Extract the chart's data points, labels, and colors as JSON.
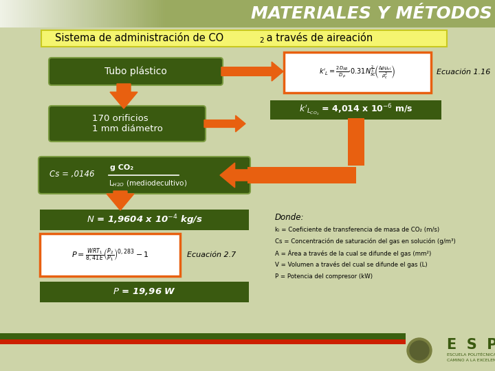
{
  "title": "MATERIALES Y MÉTODOS",
  "bg_color": "#cdd4a8",
  "title_bg_left": "#e8e8d8",
  "title_bg_right": "#8a9e5a",
  "orange": "#e86010",
  "dark_green": "#3a5a10",
  "light_green_border": "#7a9a40",
  "subtitle_bg": "#f5f570",
  "subtitle_border": "#c8c820",
  "ecuacion1_text": "Ecuación 1.16",
  "ecuacion2_text": "Ecuación 2.7",
  "donde_text": "Donde:",
  "legend1": "kₗ = Coeficiente de transferencia de masa de CO₂ (m/s)",
  "legend2": "Cs = Concentración de saturación del gas en solución (g/m³)",
  "legend3": "A = Área a través de la cual se difunde el gas (mm²)",
  "legend4": "V = Volumen a través del cual se difunde el gas (L)",
  "legend5": "P = Potencia del compresor (kW)"
}
